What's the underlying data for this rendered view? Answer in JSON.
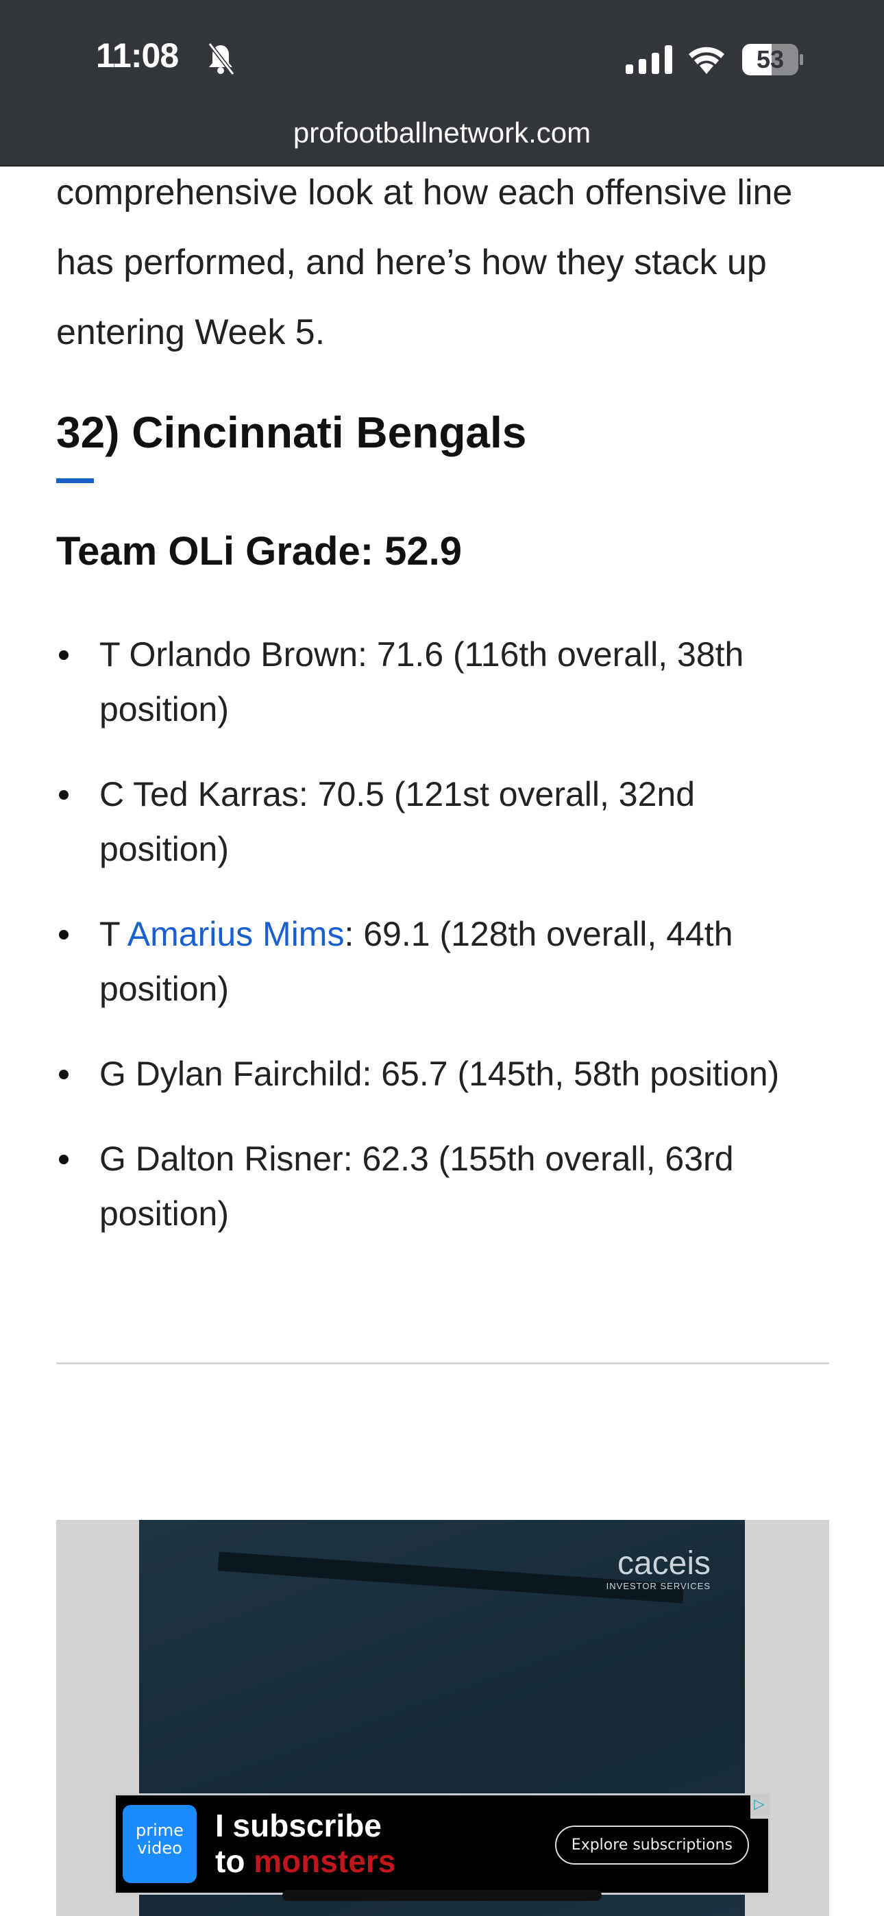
{
  "status_bar": {
    "time": "11:08",
    "battery": "53",
    "url": "profootballnetwork.com"
  },
  "article": {
    "intro": "comprehensive look at how each offensive line has performed, and here’s how they stack up entering Week 5.",
    "heading": "32) Cincinnati Bengals",
    "grade": "Team OLi Grade: 52.9",
    "players": [
      {
        "pre": "T Orlando Brown",
        "link": "",
        "post": ": 71.6 (116th overall, 38th position)"
      },
      {
        "pre": "C Ted Karras",
        "link": "",
        "post": ": 70.5 (121st overall, 32nd position)"
      },
      {
        "pre": "T ",
        "link": "Amarius Mims",
        "post": ": 69.1 (128th overall, 44th position)"
      },
      {
        "pre": "G Dylan Fairchild",
        "link": "",
        "post": ": 65.7 (145th, 58th position)"
      },
      {
        "pre": "G Dalton Risner",
        "link": "",
        "post": ": 62.3 (155th overall, 63rd position)"
      }
    ]
  },
  "ad": {
    "brand": "caceis",
    "brand_sub": "INVESTOR SERVICES"
  },
  "banner": {
    "logo": "prime video",
    "line1": "I subscribe",
    "line2_a": "to ",
    "line2_b": "monsters",
    "cta": "Explore subscriptions"
  },
  "colors": {
    "link": "#1a5fd0",
    "header_bg": "#33363a"
  }
}
